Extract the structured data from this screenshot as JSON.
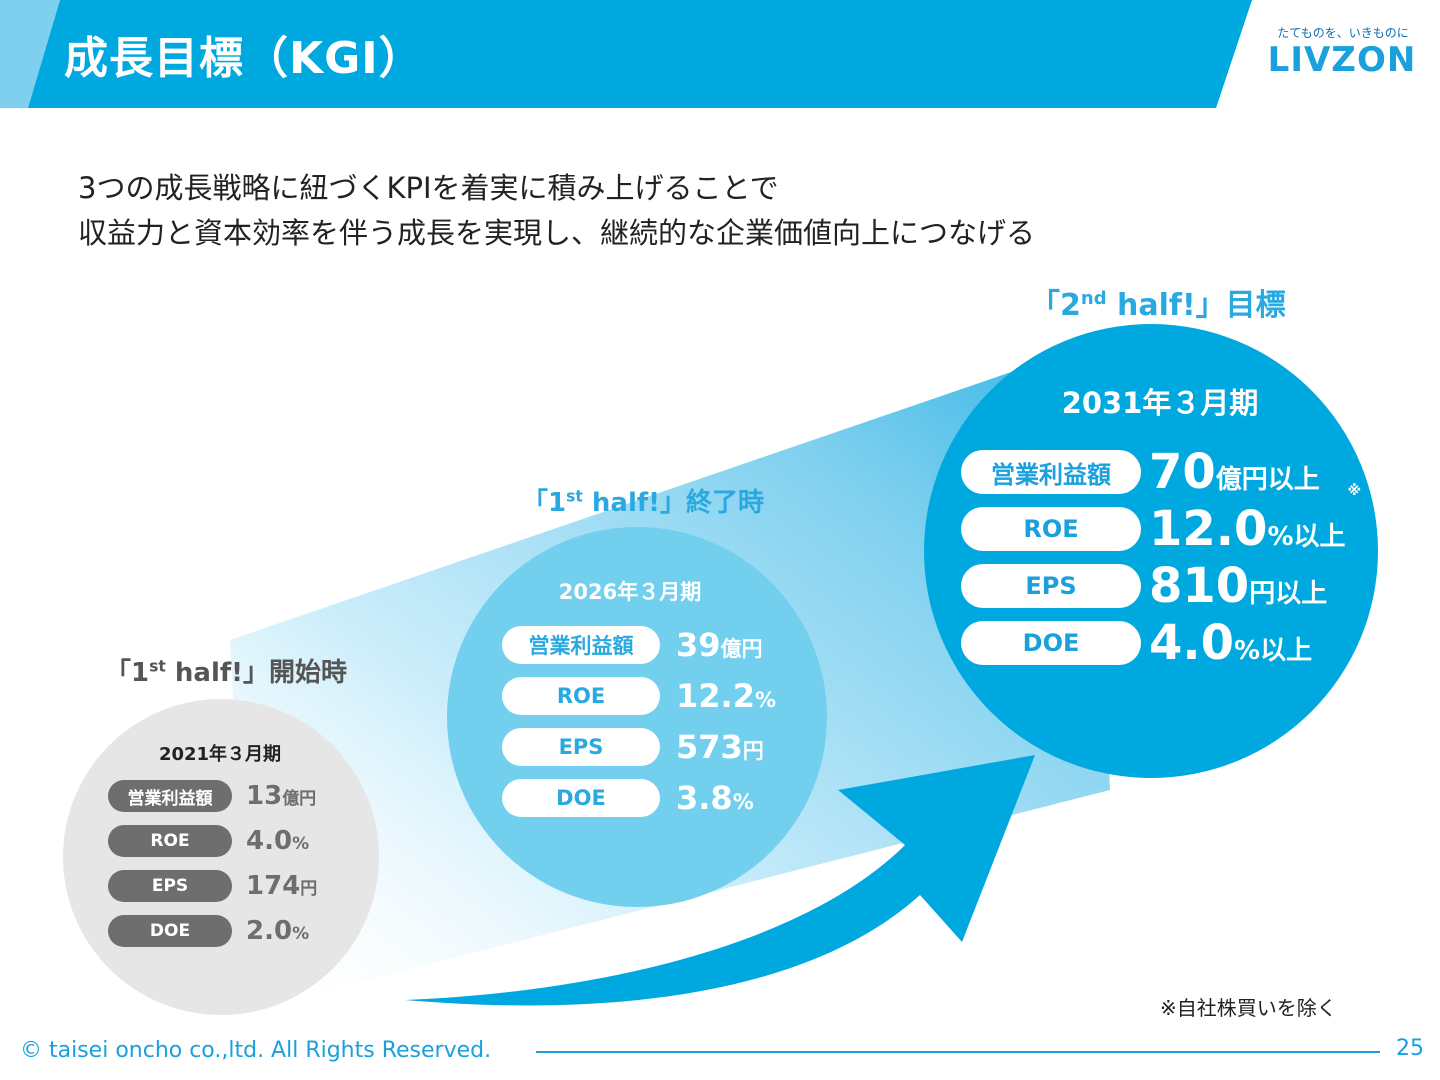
{
  "header": {
    "title": "成長目標（KGI）",
    "colors": {
      "bar": "#00a8e0",
      "bar_light": "#7fd0ef"
    }
  },
  "logo": {
    "tagline": "たてものを、いきものに",
    "text": "LIVZON"
  },
  "intro": {
    "line1": "3つの成長戦略に紐づくKPIを着実に積み上げることで",
    "line2": "収益力と資本効率を伴う成長を実現し、継続的な企業価値向上につなげる"
  },
  "phases": {
    "start": {
      "label_pre": "「1",
      "label_sup": "st",
      "label_post": " half!」開始時",
      "period": "2021年３月期",
      "metrics": [
        {
          "name": "営業利益額",
          "value": "13",
          "unit": "億円"
        },
        {
          "name": "ROE",
          "value": "4.0",
          "unit": "%"
        },
        {
          "name": "EPS",
          "value": "174",
          "unit": "円"
        },
        {
          "name": "DOE",
          "value": "2.0",
          "unit": "%"
        }
      ]
    },
    "mid": {
      "label_pre": "「1",
      "label_sup": "st",
      "label_post": " half!」終了時",
      "period": "2026年３月期",
      "metrics": [
        {
          "name": "営業利益額",
          "value": "39",
          "unit": "億円"
        },
        {
          "name": "ROE",
          "value": "12.2",
          "unit": "%"
        },
        {
          "name": "EPS",
          "value": "573",
          "unit": "円"
        },
        {
          "name": "DOE",
          "value": "3.8",
          "unit": "%"
        }
      ]
    },
    "goal": {
      "label_pre": "「2",
      "label_sup": "nd",
      "label_post": " half!」目標",
      "period": "2031年３月期",
      "metrics": [
        {
          "name": "営業利益額",
          "value": "70",
          "unit": "億円以上",
          "mark": ""
        },
        {
          "name": "ROE",
          "value": "12.0",
          "unit": "%以上",
          "mark": "※"
        },
        {
          "name": "EPS",
          "value": "810",
          "unit": "円以上",
          "mark": ""
        },
        {
          "name": "DOE",
          "value": "4.0",
          "unit": "%以上",
          "mark": ""
        }
      ]
    }
  },
  "footnote": "※自社株買いを除く",
  "footer": {
    "copyright": "© taisei oncho co.,ltd. All Rights Reserved.",
    "page": "25"
  }
}
